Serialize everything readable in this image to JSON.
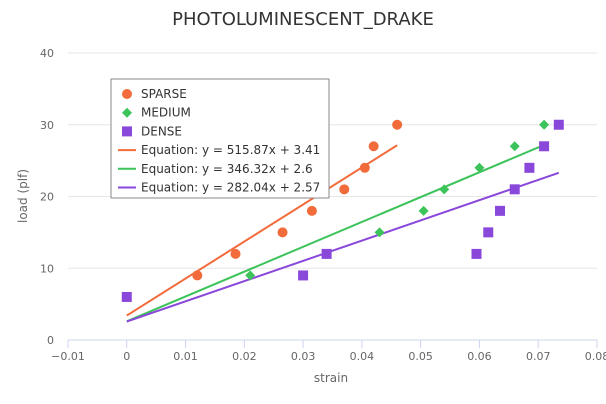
{
  "chart_data": {
    "type": "scatter",
    "title": "PHOTOLUMINESCENT_DRAKE",
    "xlabel": "strain",
    "ylabel": "load (plf)",
    "xlim": [
      -0.01,
      0.08
    ],
    "ylim": [
      0,
      40
    ],
    "x_ticks": [
      "−0.01",
      "0",
      "0.01",
      "0.02",
      "0.03",
      "0.04",
      "0.05",
      "0.06",
      "0.07",
      "0.08"
    ],
    "y_ticks": [
      "0",
      "10",
      "20",
      "30",
      "40"
    ],
    "grid": "horizontal",
    "legend_position": "top-left",
    "series": [
      {
        "name": "SPARSE",
        "marker": "circle",
        "color": "#f26b3a",
        "points": [
          {
            "x": 0.012,
            "y": 9
          },
          {
            "x": 0.0185,
            "y": 12
          },
          {
            "x": 0.0265,
            "y": 15
          },
          {
            "x": 0.0315,
            "y": 18
          },
          {
            "x": 0.037,
            "y": 21
          },
          {
            "x": 0.0405,
            "y": 24
          },
          {
            "x": 0.042,
            "y": 27
          },
          {
            "x": 0.046,
            "y": 30
          }
        ]
      },
      {
        "name": "MEDIUM",
        "marker": "diamond",
        "color": "#3cc35a",
        "points": [
          {
            "x": 0.021,
            "y": 9
          },
          {
            "x": 0.034,
            "y": 12
          },
          {
            "x": 0.043,
            "y": 15
          },
          {
            "x": 0.0505,
            "y": 18
          },
          {
            "x": 0.054,
            "y": 21
          },
          {
            "x": 0.06,
            "y": 24
          },
          {
            "x": 0.066,
            "y": 27
          },
          {
            "x": 0.071,
            "y": 30
          }
        ]
      },
      {
        "name": "DENSE",
        "marker": "square",
        "color": "#8a48db",
        "points": [
          {
            "x": 0,
            "y": 6
          },
          {
            "x": 0.03,
            "y": 9
          },
          {
            "x": 0.034,
            "y": 12
          },
          {
            "x": 0.0595,
            "y": 12
          },
          {
            "x": 0.0615,
            "y": 15
          },
          {
            "x": 0.0635,
            "y": 18
          },
          {
            "x": 0.066,
            "y": 21
          },
          {
            "x": 0.0685,
            "y": 24
          },
          {
            "x": 0.071,
            "y": 27
          },
          {
            "x": 0.0735,
            "y": 30
          }
        ]
      }
    ],
    "trendlines": [
      {
        "label": "Equation: y = 515.87x + 3.41",
        "color": "#f26b3a",
        "slope": 515.87,
        "intercept": 3.41,
        "x_range": [
          0,
          0.046
        ]
      },
      {
        "label": "Equation: y = 346.32x + 2.6",
        "color": "#3cc35a",
        "slope": 346.32,
        "intercept": 2.6,
        "x_range": [
          0,
          0.071
        ]
      },
      {
        "label": "Equation: y = 282.04x + 2.57",
        "color": "#8a48db",
        "slope": 282.04,
        "intercept": 2.57,
        "x_range": [
          0,
          0.0735
        ]
      }
    ]
  }
}
